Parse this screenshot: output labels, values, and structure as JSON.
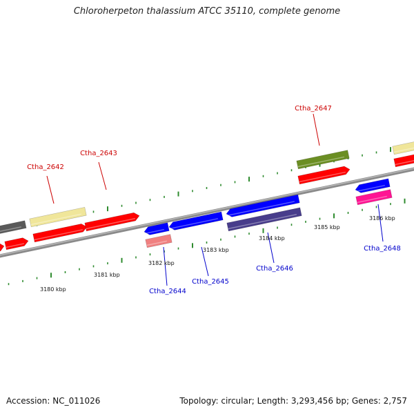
{
  "title": "Chloroherpeton thalassium ATCC 35110, complete genome",
  "footer": {
    "accession": "Accession: NC_011026",
    "stats": "Topology: circular; Length: 3,293,456 bp; Genes: 2,757"
  },
  "colors": {
    "backbone": "#888888",
    "tick": "#2e8b2e",
    "forward_label": "#cc0000",
    "reverse_label": "#0000cc"
  },
  "kbp_ticks": [
    "3180 kbp",
    "3181 kbp",
    "3182 kbp",
    "3183 kbp",
    "3184 kbp",
    "3185 kbp",
    "3186 kbp"
  ],
  "gene_labels": [
    {
      "id": "forward-Ctha_2642",
      "text": "Ctha_2642",
      "strand": "forward"
    },
    {
      "id": "forward-Ctha_2643",
      "text": "Ctha_2643",
      "strand": "forward"
    },
    {
      "id": "forward-Ctha_2647",
      "text": "Ctha_2647",
      "strand": "forward"
    },
    {
      "id": "reverse-Ctha_2644",
      "text": "Ctha_2644",
      "strand": "reverse"
    },
    {
      "id": "reverse-Ctha_2645",
      "text": "Ctha_2645",
      "strand": "reverse"
    },
    {
      "id": "reverse-Ctha_2646",
      "text": "Ctha_2646",
      "strand": "reverse"
    },
    {
      "id": "reverse-Ctha_2648",
      "text": "Ctha_2648",
      "strand": "reverse"
    }
  ]
}
